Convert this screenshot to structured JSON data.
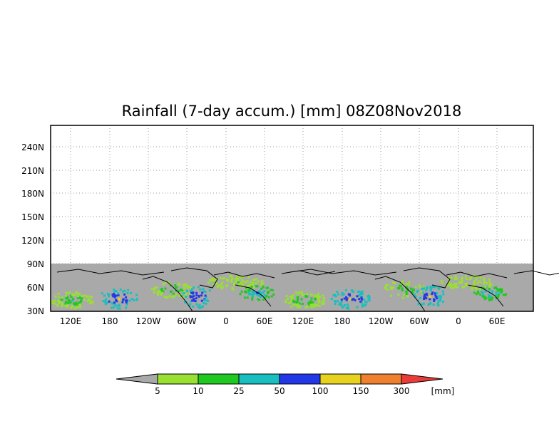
{
  "title": "Rainfall (7-day accum.) [mm] 08Z08Nov2018",
  "map": {
    "ylabels": [
      "240N",
      "210N",
      "180N",
      "150N",
      "120N",
      "90N",
      "60N",
      "30N"
    ],
    "xlabels": [
      "120E",
      "180",
      "120W",
      "60W",
      "0",
      "60E",
      "120E",
      "180",
      "120W",
      "60W",
      "0",
      "60E"
    ],
    "gridlines": "dotted",
    "land_mask_color": "#a9a9a9"
  },
  "colorbar": {
    "unit": "[mm]",
    "labels": [
      "5",
      "10",
      "25",
      "50",
      "100",
      "150",
      "300"
    ],
    "colors": [
      "#a9a9a9",
      "#99e033",
      "#1fc91f",
      "#19bfbf",
      "#2238e6",
      "#e6d21f",
      "#ee8030",
      "#ea3b3b"
    ]
  }
}
